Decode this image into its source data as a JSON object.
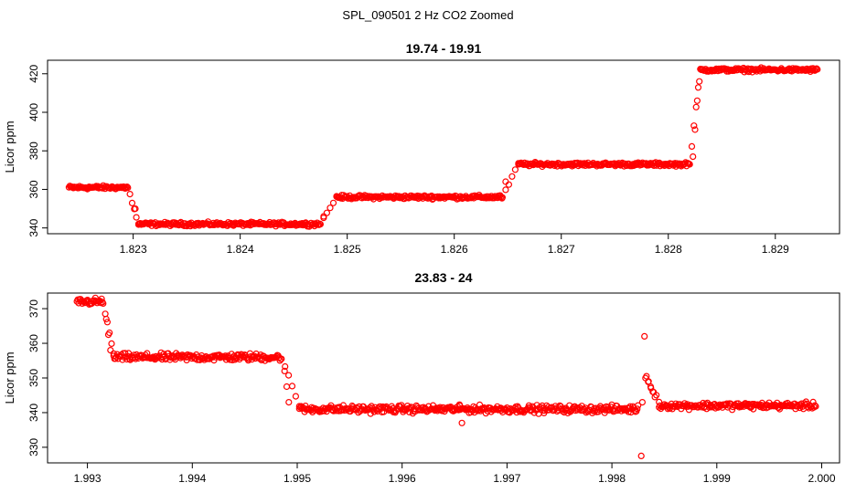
{
  "figure": {
    "title": "SPL_090501  2 Hz CO2 Zoomed"
  },
  "chart_data": [
    {
      "type": "scatter",
      "title": "19.74 - 19.91",
      "xlabel": "",
      "ylabel": "Licor ppm",
      "xlim": [
        1.8222,
        1.8296
      ],
      "ylim": [
        337,
        427
      ],
      "xticks": [
        1.823,
        1.824,
        1.825,
        1.826,
        1.827,
        1.828,
        1.829
      ],
      "xtick_labels": [
        "1.823",
        "1.824",
        "1.825",
        "1.826",
        "1.827",
        "1.828",
        "1.829"
      ],
      "yticks": [
        340,
        360,
        380,
        400,
        420
      ],
      "ytick_labels": [
        "340",
        "360",
        "380",
        "400",
        "420"
      ],
      "grid": false,
      "marker": "open-circle",
      "color": "#ff0000",
      "x_range": [
        1.8224,
        1.8294
      ],
      "segments": [
        {
          "x0": 1.8224,
          "x1": 1.82295,
          "y": 361,
          "noise": 0.8
        },
        {
          "x0": 1.82305,
          "x1": 1.82475,
          "y": 342,
          "noise": 0.8
        },
        {
          "x0": 1.8249,
          "x1": 1.82645,
          "y": 356,
          "noise": 0.8
        },
        {
          "x0": 1.8266,
          "x1": 1.8282,
          "y": 373,
          "noise": 0.8
        },
        {
          "x0": 1.8283,
          "x1": 1.8294,
          "y": 422,
          "noise": 0.8
        }
      ],
      "transitions": [
        {
          "x0": 1.82295,
          "x1": 1.82305,
          "y0": 361,
          "y1": 342
        },
        {
          "x0": 1.82475,
          "x1": 1.8249,
          "y0": 342,
          "y1": 356
        },
        {
          "x0": 1.82645,
          "x1": 1.8266,
          "y0": 356,
          "y1": 373
        },
        {
          "x0": 1.8282,
          "x1": 1.8283,
          "y0": 373,
          "y1": 422
        }
      ],
      "highlighted_points": [
        {
          "x": 1.82823,
          "y": 377
        },
        {
          "x": 1.82825,
          "y": 391
        },
        {
          "x": 1.82827,
          "y": 406
        },
        {
          "x": 1.82829,
          "y": 416
        },
        {
          "x": 1.82302,
          "y": 350
        },
        {
          "x": 1.82478,
          "y": 346
        },
        {
          "x": 1.82648,
          "y": 364
        }
      ]
    },
    {
      "type": "scatter",
      "title": "23.83 - 24",
      "xlabel": "",
      "ylabel": "Licor ppm",
      "xlim": [
        1.99262,
        2.00017
      ],
      "ylim": [
        325.5,
        374.5
      ],
      "xticks": [
        1.993,
        1.994,
        1.995,
        1.996,
        1.997,
        1.998,
        1.999,
        2.0
      ],
      "xtick_labels": [
        "1.993",
        "1.994",
        "1.995",
        "1.996",
        "1.997",
        "1.998",
        "1.999",
        "2.000"
      ],
      "yticks": [
        330,
        340,
        350,
        360,
        370
      ],
      "ytick_labels": [
        "330",
        "340",
        "350",
        "360",
        "370"
      ],
      "grid": false,
      "marker": "open-circle",
      "color": "#ff0000",
      "x_range": [
        1.9929,
        1.99995
      ],
      "segments": [
        {
          "x0": 1.9929,
          "x1": 1.99315,
          "y": 372,
          "noise": 0.9
        },
        {
          "x0": 1.99325,
          "x1": 1.99485,
          "y": 356,
          "noise": 0.9
        },
        {
          "x0": 1.99502,
          "x1": 1.99825,
          "y": 341,
          "noise": 0.9
        },
        {
          "x0": 1.99845,
          "x1": 1.99995,
          "y": 342,
          "noise": 0.8
        }
      ],
      "transitions": [
        {
          "x0": 1.99315,
          "x1": 1.99325,
          "y0": 372,
          "y1": 357
        },
        {
          "x0": 1.99485,
          "x1": 1.99502,
          "y0": 356,
          "y1": 342
        },
        {
          "x0": 1.99832,
          "x1": 1.99845,
          "y0": 350,
          "y1": 343
        }
      ],
      "highlighted_points": [
        {
          "x": 1.99318,
          "y": 367
        },
        {
          "x": 1.9932,
          "y": 362.5
        },
        {
          "x": 1.99322,
          "y": 358
        },
        {
          "x": 1.99488,
          "y": 352
        },
        {
          "x": 1.9949,
          "y": 347.5
        },
        {
          "x": 1.99492,
          "y": 343
        },
        {
          "x": 1.99657,
          "y": 337
        },
        {
          "x": 1.99655,
          "y": 342
        },
        {
          "x": 1.99828,
          "y": 327.5
        },
        {
          "x": 1.99829,
          "y": 343
        },
        {
          "x": 1.99831,
          "y": 362
        },
        {
          "x": 1.99833,
          "y": 350.5
        },
        {
          "x": 1.99835,
          "y": 349
        },
        {
          "x": 1.99837,
          "y": 347.5
        },
        {
          "x": 1.99839,
          "y": 346
        },
        {
          "x": 1.99841,
          "y": 344.5
        }
      ]
    }
  ]
}
